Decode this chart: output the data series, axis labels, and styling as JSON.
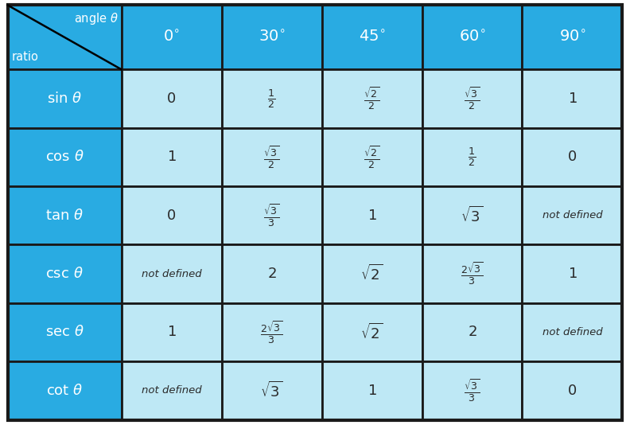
{
  "header_bg": "#29ABE2",
  "row_header_bg": "#29ABE2",
  "cell_bg": "#BEE8F5",
  "border_color": "#1A1A1A",
  "header_text_color": "#FFFFFF",
  "cell_text_color": "#2A2A2A",
  "angles": [
    "0^{\\circ}",
    "30^{\\circ}",
    "45^{\\circ}",
    "60^{\\circ}",
    "90^{\\circ}"
  ],
  "ratios": [
    "sin",
    "cos",
    "tan",
    "csc",
    "sec",
    "cot"
  ],
  "data": [
    [
      "0",
      "\\frac{1}{2}",
      "\\frac{\\sqrt{2}}{2}",
      "\\frac{\\sqrt{3}}{2}",
      "1"
    ],
    [
      "1",
      "\\frac{\\sqrt{3}}{2}",
      "\\frac{\\sqrt{2}}{2}",
      "\\frac{1}{2}",
      "0"
    ],
    [
      "0",
      "\\frac{\\sqrt{3}}{3}",
      "1",
      "\\sqrt{3}",
      "not defined"
    ],
    [
      "not defined",
      "2",
      "\\sqrt{2}",
      "\\frac{2\\sqrt{3}}{3}",
      "1"
    ],
    [
      "1",
      "\\frac{2\\sqrt{3}}{3}",
      "\\sqrt{2}",
      "2",
      "not defined"
    ],
    [
      "not defined",
      "\\sqrt{3}",
      "1",
      "\\frac{\\sqrt{3}}{3}",
      "0"
    ]
  ],
  "col_label": "angle \\theta",
  "row_label": "ratio",
  "figsize": [
    7.92,
    5.34
  ],
  "dpi": 100
}
